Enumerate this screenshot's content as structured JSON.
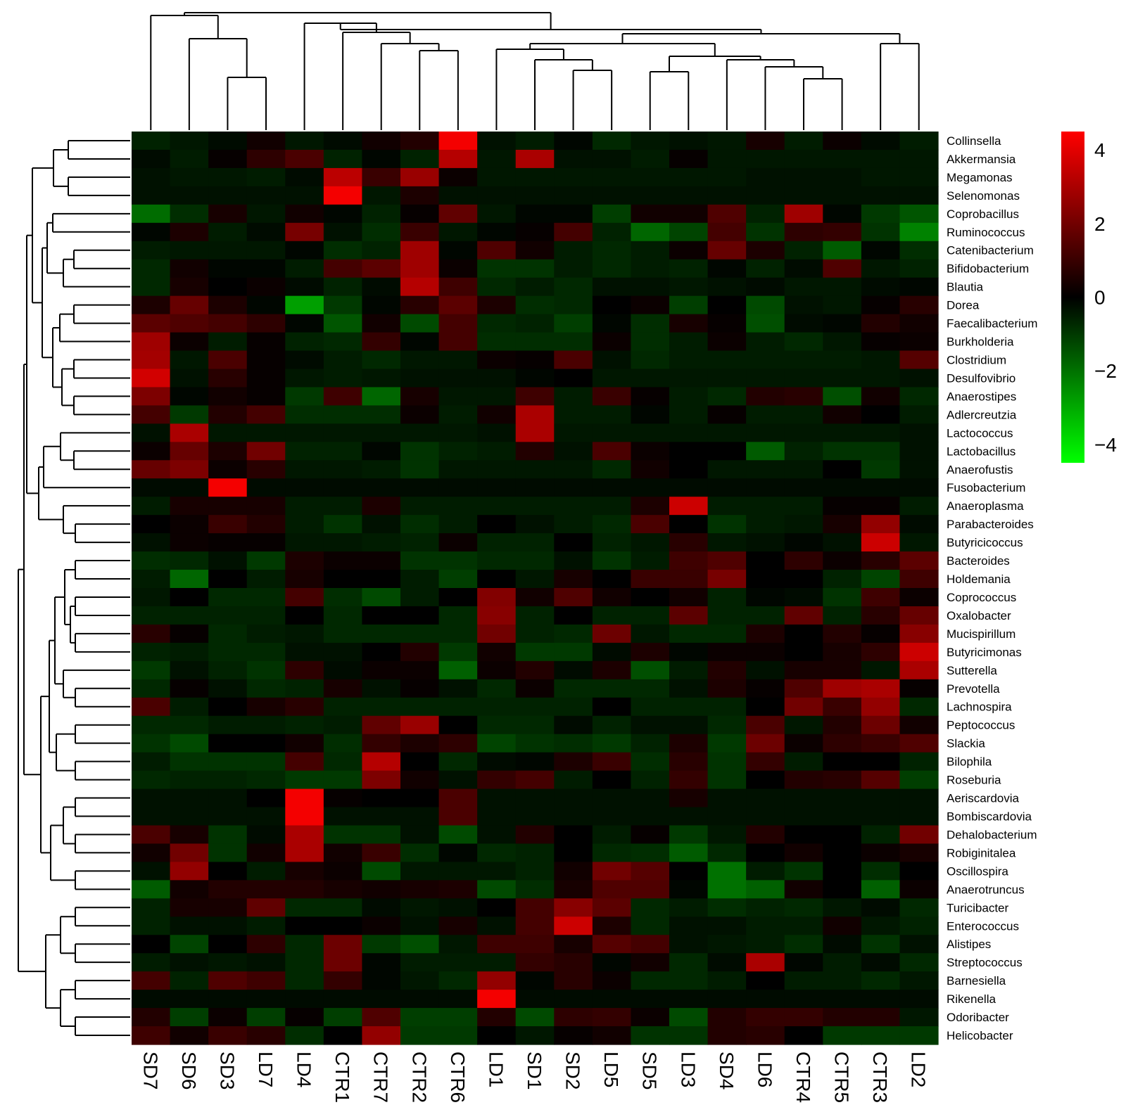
{
  "chart_data": {
    "type": "heatmap",
    "title": "",
    "xlabel": "",
    "ylabel": "",
    "columns": [
      "SD7",
      "SD6",
      "SD3",
      "LD7",
      "LD4",
      "CTR1",
      "CTR7",
      "CTR2",
      "CTR6",
      "LD1",
      "SD1",
      "SD2",
      "LD5",
      "SD5",
      "LD3",
      "SD4",
      "LD6",
      "CTR4",
      "CTR5",
      "CTR3",
      "LD2"
    ],
    "rows": [
      "Collinsella",
      "Akkermansia",
      "Megamonas",
      "Selenomonas",
      "Coprobacillus",
      "Ruminococcus",
      "Catenibacterium",
      "Bifidobacterium",
      "Blautia",
      "Dorea",
      "Faecalibacterium",
      "Burkholderia",
      "Clostridium",
      "Desulfovibrio",
      "Anaerostipes",
      "Adlercreutzia",
      "Lactococcus",
      "Lactobacillus",
      "Anaerofustis",
      "Fusobacterium",
      "Anaeroplasma",
      "Parabacteroides",
      "Butyricicoccus",
      "Bacteroides",
      "Holdemania",
      "Coprococcus",
      "Oxalobacter",
      "Mucispirillum",
      "Butyricimonas",
      "Sutterella",
      "Prevotella",
      "Lachnospira",
      "Peptococcus",
      "Slackia",
      "Bilophila",
      "Roseburia",
      "Aeriscardovia",
      "Bombiscardovia",
      "Dehalobacterium",
      "Robiginitalea",
      "Oscillospira",
      "Anaerotruncus",
      "Turicibacter",
      "Enterococcus",
      "Alistipes",
      "Streptococcus",
      "Barnesiella",
      "Rikenella",
      "Odoribacter",
      "Helicobacter"
    ],
    "values": [
      [
        -0.6,
        -0.4,
        -0.2,
        0.3,
        -0.4,
        -0.2,
        0.3,
        0.6,
        4.3,
        -0.3,
        -0.5,
        -0.1,
        -0.7,
        -0.4,
        -0.3,
        -0.4,
        0.4,
        -0.5,
        0.2,
        -0.2,
        -0.5
      ],
      [
        -0.2,
        -0.5,
        0.1,
        0.8,
        1.3,
        -0.6,
        -0.1,
        -0.6,
        3.2,
        -0.4,
        3.0,
        -0.3,
        -0.3,
        -0.5,
        0.1,
        -0.4,
        -0.4,
        -0.4,
        -0.4,
        -0.4,
        -0.4
      ],
      [
        -0.3,
        -0.4,
        -0.4,
        -0.5,
        -0.2,
        3.3,
        1.0,
        2.7,
        0.2,
        -0.4,
        -0.4,
        -0.4,
        -0.4,
        -0.4,
        -0.4,
        -0.4,
        -0.3,
        -0.3,
        -0.3,
        -0.4,
        -0.4
      ],
      [
        -0.3,
        -0.3,
        -0.3,
        -0.3,
        -0.3,
        4.3,
        -0.4,
        0.5,
        -0.3,
        -0.3,
        -0.3,
        -0.3,
        -0.3,
        -0.3,
        -0.3,
        -0.3,
        -0.3,
        -0.3,
        -0.3,
        -0.3,
        -0.3
      ],
      [
        -1.9,
        -0.8,
        0.4,
        -0.4,
        0.3,
        -0.1,
        -0.6,
        0.1,
        1.7,
        -0.4,
        -0.1,
        -0.1,
        -1.1,
        0.3,
        0.3,
        1.4,
        -0.6,
        2.8,
        -0.1,
        -1.0,
        -1.5
      ],
      [
        -0.1,
        0.5,
        -0.5,
        -0.2,
        2.1,
        -0.3,
        -0.8,
        1.0,
        -0.4,
        -0.1,
        0.1,
        1.2,
        -0.6,
        -1.8,
        -1.2,
        1.2,
        -0.9,
        0.8,
        0.9,
        -0.9,
        -2.3
      ],
      [
        -0.5,
        -0.4,
        -0.4,
        -0.4,
        -0.1,
        -0.8,
        -0.6,
        2.8,
        -0.1,
        1.4,
        0.3,
        -0.5,
        -0.7,
        -0.5,
        0.2,
        1.8,
        0.5,
        -0.6,
        -1.6,
        -0.1,
        -0.8
      ],
      [
        -0.7,
        0.3,
        -0.1,
        -0.1,
        -0.5,
        1.2,
        1.6,
        2.8,
        0.2,
        -0.9,
        -0.9,
        -0.5,
        -0.7,
        -0.5,
        -0.6,
        -0.1,
        -0.6,
        -0.2,
        1.4,
        -0.4,
        -0.6
      ],
      [
        -0.7,
        0.4,
        0.0,
        0.2,
        -0.2,
        -0.6,
        -0.2,
        3.2,
        1.1,
        -0.7,
        -0.5,
        -0.7,
        -0.3,
        -0.3,
        -0.4,
        -0.3,
        -0.2,
        -0.4,
        -0.4,
        -0.2,
        -0.1
      ],
      [
        0.5,
        1.8,
        0.5,
        -0.1,
        -2.8,
        -1.0,
        -0.1,
        0.7,
        1.6,
        0.5,
        -0.8,
        -0.7,
        0.0,
        0.2,
        -1.1,
        0.0,
        -1.3,
        -0.3,
        -0.4,
        0.1,
        0.7
      ],
      [
        1.6,
        1.4,
        1.2,
        0.8,
        -0.1,
        -1.5,
        0.3,
        -1.3,
        1.2,
        -0.7,
        -0.6,
        -1.1,
        -0.1,
        -0.8,
        0.4,
        0.1,
        -1.4,
        -0.2,
        -0.1,
        0.6,
        0.3
      ],
      [
        2.8,
        0.2,
        -0.5,
        0.1,
        -0.6,
        -0.7,
        0.9,
        -0.1,
        1.2,
        -0.8,
        -0.8,
        -0.8,
        0.2,
        -0.8,
        -0.5,
        0.2,
        -0.5,
        -0.7,
        -0.4,
        0.1,
        0.2
      ],
      [
        2.9,
        -0.4,
        1.3,
        0.1,
        -0.2,
        -0.5,
        -0.7,
        -0.4,
        -0.4,
        0.2,
        0.1,
        1.3,
        -0.3,
        -0.7,
        -0.5,
        -0.5,
        -0.5,
        -0.5,
        -0.5,
        -0.4,
        1.5
      ],
      [
        3.7,
        -0.3,
        0.7,
        0.1,
        -0.4,
        -0.5,
        -0.4,
        -0.3,
        -0.3,
        -0.3,
        -0.1,
        0.0,
        -0.4,
        -0.4,
        -0.4,
        -0.4,
        -0.4,
        -0.4,
        -0.4,
        -0.4,
        -0.3
      ],
      [
        2.2,
        -0.1,
        0.3,
        0.1,
        -1.0,
        1.1,
        -1.8,
        0.4,
        -0.4,
        -0.4,
        1.1,
        -0.5,
        1.0,
        0.1,
        -0.5,
        -0.7,
        0.6,
        0.7,
        -1.4,
        0.3,
        -0.7
      ],
      [
        1.2,
        -1.0,
        0.6,
        1.2,
        -0.8,
        -0.8,
        -0.8,
        0.2,
        -0.5,
        0.3,
        3.0,
        -0.5,
        -0.5,
        -0.1,
        -0.5,
        0.1,
        -0.5,
        -0.5,
        0.3,
        0.0,
        -0.5
      ],
      [
        -0.3,
        3.0,
        -0.4,
        -0.4,
        -0.4,
        -0.4,
        -0.4,
        -0.4,
        -0.4,
        -0.3,
        3.0,
        -0.4,
        -0.4,
        -0.4,
        -0.4,
        -0.4,
        -0.4,
        -0.4,
        -0.4,
        -0.4,
        -0.3
      ],
      [
        0.2,
        1.8,
        0.5,
        2.0,
        -0.6,
        -0.6,
        -0.1,
        -0.9,
        -0.6,
        -0.5,
        0.6,
        -0.3,
        1.3,
        0.2,
        0.0,
        0.0,
        -1.6,
        -0.6,
        -0.9,
        -0.9,
        -0.3
      ],
      [
        1.8,
        2.2,
        0.2,
        0.7,
        -0.4,
        -0.4,
        -0.5,
        -0.9,
        -0.4,
        -0.4,
        -0.4,
        -0.4,
        -0.7,
        0.3,
        0.0,
        -0.4,
        -0.4,
        -0.4,
        0.0,
        -1.0,
        -0.3
      ],
      [
        -0.2,
        -0.2,
        4.3,
        -0.2,
        -0.2,
        -0.2,
        -0.2,
        -0.2,
        -0.2,
        -0.2,
        -0.2,
        -0.2,
        -0.2,
        -0.2,
        -0.2,
        -0.2,
        -0.2,
        -0.2,
        -0.2,
        -0.2,
        -0.2
      ],
      [
        -0.5,
        0.4,
        0.4,
        0.4,
        -0.5,
        -0.5,
        0.5,
        -0.5,
        -0.5,
        -0.5,
        -0.5,
        -0.5,
        -0.5,
        0.5,
        3.6,
        -0.5,
        -0.5,
        -0.5,
        0.1,
        0.1,
        -0.5
      ],
      [
        0.0,
        0.2,
        1.0,
        0.6,
        -0.5,
        -0.9,
        -0.3,
        -0.8,
        -0.5,
        0.0,
        -0.3,
        -0.5,
        -0.7,
        1.3,
        0.0,
        -0.9,
        -0.5,
        -0.4,
        0.4,
        2.6,
        -0.2
      ],
      [
        -0.3,
        0.2,
        0.1,
        0.1,
        -0.4,
        -0.4,
        -0.5,
        -0.6,
        0.2,
        -0.6,
        -0.6,
        0.0,
        -0.6,
        -0.4,
        0.7,
        -0.4,
        -0.3,
        -0.1,
        -0.3,
        3.6,
        -0.4
      ],
      [
        -0.8,
        -0.7,
        -0.3,
        -1.0,
        0.5,
        0.2,
        0.2,
        -0.9,
        -0.9,
        -0.7,
        -0.7,
        -0.3,
        -0.9,
        -0.5,
        1.1,
        1.4,
        0.0,
        0.8,
        0.2,
        0.7,
        1.6
      ],
      [
        -0.5,
        -1.8,
        0.0,
        -0.5,
        0.4,
        0.0,
        0.0,
        -0.5,
        -1.1,
        0.0,
        -0.4,
        0.4,
        0.0,
        1.0,
        1.0,
        2.1,
        0.0,
        0.0,
        -0.6,
        -1.2,
        1.1
      ],
      [
        -0.4,
        0.0,
        -0.7,
        -0.7,
        1.2,
        -0.8,
        -1.3,
        -0.5,
        0.0,
        2.3,
        0.3,
        1.4,
        0.3,
        0.0,
        0.3,
        -0.6,
        -0.1,
        -0.2,
        -0.9,
        1.1,
        0.2
      ],
      [
        -0.6,
        -0.6,
        -0.6,
        -0.6,
        0.0,
        -0.7,
        0.0,
        0.0,
        -0.7,
        2.4,
        -0.6,
        0.0,
        -0.6,
        -0.6,
        1.6,
        -0.6,
        -0.6,
        1.7,
        -0.6,
        0.7,
        1.8
      ],
      [
        0.7,
        0.1,
        -0.7,
        -0.5,
        -0.4,
        -0.7,
        -0.7,
        -0.7,
        -0.7,
        2.0,
        -0.6,
        -0.7,
        1.9,
        -0.4,
        -0.7,
        -0.7,
        0.5,
        0.0,
        0.6,
        0.1,
        2.4
      ],
      [
        -0.6,
        -0.5,
        -0.7,
        -0.7,
        -0.3,
        -0.3,
        0.0,
        0.6,
        -1.0,
        0.3,
        -1.0,
        -1.0,
        -0.2,
        0.5,
        -0.1,
        0.2,
        0.2,
        0.0,
        0.4,
        0.8,
        3.6
      ],
      [
        -1.0,
        -0.3,
        -0.6,
        -0.9,
        0.8,
        -0.2,
        0.2,
        0.2,
        -1.7,
        0.2,
        0.6,
        -0.2,
        0.5,
        -1.4,
        -0.5,
        0.6,
        -0.3,
        0.4,
        0.4,
        -0.4,
        3.0
      ],
      [
        -0.7,
        0.1,
        -0.3,
        -0.7,
        -0.6,
        0.4,
        -0.3,
        0.1,
        -0.3,
        -0.7,
        0.2,
        -0.7,
        -0.7,
        -0.7,
        -0.3,
        0.5,
        0.1,
        1.4,
        2.8,
        3.0,
        0.1
      ],
      [
        1.3,
        -0.5,
        0.0,
        0.4,
        0.7,
        -0.6,
        -0.6,
        -0.6,
        -0.6,
        -0.6,
        -0.6,
        -0.6,
        0.0,
        -0.6,
        -0.6,
        -0.6,
        0.0,
        2.0,
        1.0,
        2.6,
        -0.7
      ],
      [
        -0.7,
        -0.7,
        -0.5,
        -0.5,
        -0.6,
        -0.5,
        1.7,
        2.7,
        0.0,
        -0.7,
        -0.7,
        -0.2,
        -0.6,
        -0.3,
        -0.3,
        -0.7,
        1.3,
        -0.4,
        0.6,
        1.9,
        0.3
      ],
      [
        -0.9,
        -1.3,
        0.0,
        0.0,
        0.3,
        -0.8,
        0.9,
        0.5,
        0.8,
        -1.2,
        -0.9,
        -0.8,
        -1.0,
        -0.6,
        0.5,
        -1.0,
        1.9,
        0.2,
        0.8,
        1.0,
        1.4
      ],
      [
        -0.5,
        -0.9,
        -0.9,
        -0.9,
        1.2,
        -0.7,
        3.2,
        0.0,
        -0.7,
        -0.2,
        -0.1,
        0.5,
        1.0,
        -0.8,
        0.7,
        -0.9,
        0.9,
        -0.5,
        0.0,
        0.0,
        -0.6
      ],
      [
        -0.7,
        -0.6,
        -0.6,
        -0.7,
        -1.0,
        -1.0,
        2.2,
        0.3,
        -0.3,
        0.9,
        1.2,
        -0.5,
        0.0,
        -0.6,
        0.9,
        -0.9,
        0.0,
        0.6,
        0.7,
        1.5,
        -1.1
      ],
      [
        -0.3,
        -0.3,
        -0.3,
        0.0,
        4.3,
        0.1,
        0.0,
        0.0,
        1.3,
        -0.3,
        -0.3,
        -0.3,
        -0.3,
        -0.3,
        0.4,
        -0.3,
        -0.3,
        -0.3,
        -0.3,
        -0.3,
        -0.3
      ],
      [
        -0.3,
        -0.3,
        -0.3,
        -0.3,
        4.3,
        -0.3,
        -0.3,
        -0.3,
        1.3,
        -0.3,
        -0.3,
        -0.3,
        -0.3,
        -0.3,
        -0.3,
        -0.3,
        -0.3,
        -0.3,
        -0.3,
        -0.3,
        -0.3
      ],
      [
        1.3,
        0.4,
        -0.9,
        -0.2,
        3.0,
        -0.9,
        -0.9,
        -0.3,
        -1.3,
        -0.3,
        0.6,
        0.0,
        -0.5,
        0.1,
        -1.0,
        -0.4,
        0.6,
        0.0,
        0.0,
        -0.6,
        2.0
      ],
      [
        0.3,
        2.0,
        -0.9,
        0.3,
        3.0,
        0.3,
        1.0,
        -0.8,
        -0.1,
        -0.7,
        -0.6,
        0.0,
        -0.7,
        -0.8,
        -1.6,
        -0.7,
        0.0,
        0.3,
        0.0,
        0.2,
        0.4
      ],
      [
        -0.3,
        2.6,
        0.0,
        -0.5,
        0.4,
        0.2,
        -1.3,
        -0.4,
        -0.4,
        -0.4,
        -0.6,
        0.3,
        2.0,
        1.5,
        0.0,
        -2.0,
        -0.5,
        -0.9,
        0.0,
        -0.8,
        0.0
      ],
      [
        -1.6,
        0.3,
        0.6,
        0.6,
        0.6,
        0.4,
        0.3,
        0.4,
        0.5,
        -1.3,
        -0.8,
        0.4,
        1.4,
        1.4,
        -0.1,
        -2.0,
        -1.7,
        0.3,
        0.0,
        -1.7,
        0.2
      ],
      [
        -0.6,
        0.4,
        0.4,
        1.7,
        -0.7,
        -0.7,
        -0.2,
        -0.4,
        -0.3,
        0.0,
        1.2,
        2.4,
        1.6,
        -0.7,
        -0.5,
        -0.8,
        -0.6,
        -0.7,
        -0.4,
        -0.2,
        -0.7
      ],
      [
        -0.6,
        -0.3,
        -0.3,
        -0.5,
        0.0,
        0.0,
        0.2,
        -0.3,
        0.4,
        -0.3,
        1.2,
        3.6,
        0.5,
        -0.7,
        -0.3,
        -0.3,
        -0.5,
        -0.5,
        0.3,
        -0.4,
        -0.6
      ],
      [
        0.0,
        -1.2,
        0.0,
        0.8,
        -0.7,
        1.9,
        -1.0,
        -1.4,
        -0.4,
        1.1,
        1.1,
        0.4,
        1.5,
        1.2,
        -0.3,
        -0.4,
        -0.5,
        -0.8,
        -0.2,
        -0.9,
        -0.3
      ],
      [
        -0.5,
        -0.3,
        -0.4,
        -0.3,
        -0.7,
        1.9,
        -0.1,
        -0.5,
        -0.5,
        -0.5,
        0.9,
        0.7,
        -0.1,
        0.3,
        -0.7,
        -0.2,
        3.0,
        -0.1,
        -0.5,
        -0.2,
        -0.7
      ],
      [
        1.2,
        -0.6,
        1.4,
        1.1,
        -0.7,
        0.9,
        -0.1,
        -0.4,
        -0.7,
        2.6,
        -0.1,
        0.7,
        0.2,
        -0.7,
        -0.7,
        -0.5,
        0.0,
        -0.5,
        -0.5,
        -0.7,
        -0.4
      ],
      [
        -0.2,
        -0.2,
        -0.2,
        -0.2,
        -0.2,
        -0.2,
        -0.2,
        -0.2,
        -0.2,
        4.3,
        -0.2,
        -0.2,
        -0.2,
        -0.2,
        -0.2,
        -0.2,
        -0.2,
        -0.2,
        -0.2,
        -0.2,
        -0.2
      ],
      [
        0.6,
        -1.1,
        0.2,
        -1.1,
        0.1,
        -1.1,
        1.4,
        -1.1,
        -1.1,
        0.6,
        -1.3,
        0.8,
        0.9,
        0.2,
        -1.3,
        0.6,
        0.9,
        0.9,
        0.6,
        0.6,
        -0.4
      ],
      [
        1.1,
        0.3,
        1.0,
        0.7,
        -0.8,
        0.0,
        2.6,
        -1.0,
        -1.0,
        0.0,
        -0.4,
        0.1,
        0.3,
        -0.9,
        -0.9,
        0.6,
        0.7,
        0.0,
        -1.0,
        -1.0,
        -1.0
      ]
    ],
    "color_scale": {
      "min": -4.5,
      "max": 4.5,
      "low": "#00ff00",
      "mid": "#000000",
      "high": "#ff0000"
    },
    "legend": {
      "ticks": [
        4,
        2,
        0,
        -2,
        -4
      ],
      "tick_labels": [
        "4",
        "2",
        "0",
        "−2",
        "−4"
      ],
      "placement": "top-right"
    }
  }
}
